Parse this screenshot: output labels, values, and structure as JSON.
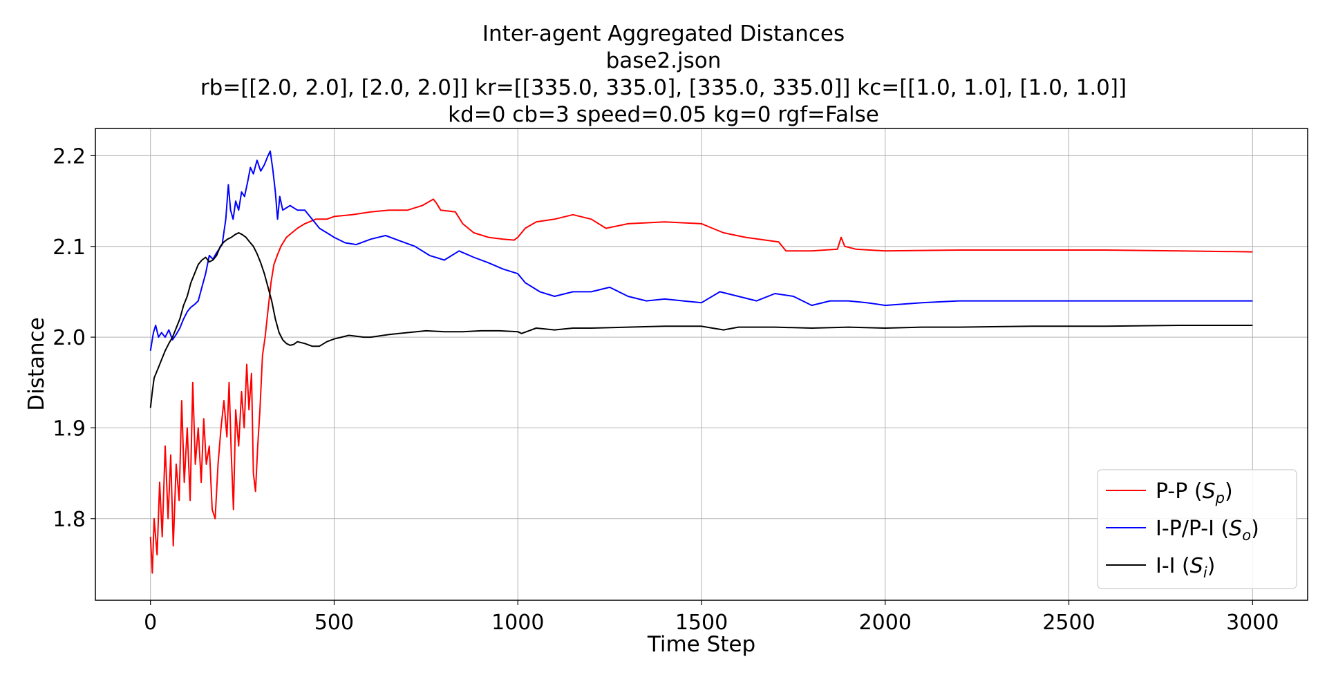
{
  "chart_data": {
    "type": "line",
    "title_lines": [
      "Inter-agent Aggregated Distances",
      "base2.json",
      "rb=[[2.0, 2.0], [2.0, 2.0]] kr=[[335.0, 335.0], [335.0, 335.0]] kc=[[1.0, 1.0], [1.0, 1.0]]",
      "kd=0 cb=3 speed=0.05 kg=0 rgf=False"
    ],
    "xlabel": "Time Step",
    "ylabel": "Distance",
    "xlim": [
      -150,
      3150
    ],
    "ylim": [
      1.71,
      2.23
    ],
    "xticks": [
      0,
      500,
      1000,
      1500,
      2000,
      2500,
      3000
    ],
    "yticks": [
      1.8,
      1.9,
      2.0,
      2.1,
      2.2
    ],
    "xtick_labels": [
      "0",
      "500",
      "1000",
      "1500",
      "2000",
      "2500",
      "3000"
    ],
    "ytick_labels": [
      "1.8",
      "1.9",
      "2.0",
      "2.1",
      "2.2"
    ],
    "grid": true,
    "legend_position": "lower-right",
    "series": [
      {
        "name": "P-P (S_p)",
        "label_main": "P-P (",
        "label_sym": "S",
        "label_sub": "p",
        "label_end": ")",
        "color": "#ff0000",
        "points": [
          [
            0,
            1.78
          ],
          [
            5,
            1.74
          ],
          [
            10,
            1.8
          ],
          [
            18,
            1.76
          ],
          [
            25,
            1.84
          ],
          [
            32,
            1.78
          ],
          [
            40,
            1.88
          ],
          [
            48,
            1.8
          ],
          [
            55,
            1.87
          ],
          [
            62,
            1.77
          ],
          [
            70,
            1.86
          ],
          [
            78,
            1.82
          ],
          [
            85,
            1.93
          ],
          [
            92,
            1.84
          ],
          [
            100,
            1.9
          ],
          [
            108,
            1.82
          ],
          [
            115,
            1.95
          ],
          [
            122,
            1.86
          ],
          [
            130,
            1.9
          ],
          [
            138,
            1.84
          ],
          [
            145,
            1.91
          ],
          [
            152,
            1.86
          ],
          [
            160,
            1.88
          ],
          [
            168,
            1.81
          ],
          [
            176,
            1.8
          ],
          [
            184,
            1.86
          ],
          [
            192,
            1.9
          ],
          [
            200,
            1.93
          ],
          [
            208,
            1.89
          ],
          [
            214,
            1.95
          ],
          [
            220,
            1.87
          ],
          [
            226,
            1.81
          ],
          [
            232,
            1.92
          ],
          [
            240,
            1.88
          ],
          [
            248,
            1.94
          ],
          [
            255,
            1.9
          ],
          [
            262,
            1.97
          ],
          [
            268,
            1.92
          ],
          [
            275,
            1.96
          ],
          [
            280,
            1.85
          ],
          [
            286,
            1.83
          ],
          [
            292,
            1.88
          ],
          [
            298,
            1.92
          ],
          [
            305,
            1.98
          ],
          [
            312,
            2.0
          ],
          [
            320,
            2.03
          ],
          [
            328,
            2.06
          ],
          [
            336,
            2.08
          ],
          [
            345,
            2.09
          ],
          [
            355,
            2.1
          ],
          [
            370,
            2.11
          ],
          [
            385,
            2.115
          ],
          [
            400,
            2.12
          ],
          [
            420,
            2.125
          ],
          [
            450,
            2.13
          ],
          [
            480,
            2.13
          ],
          [
            500,
            2.133
          ],
          [
            550,
            2.135
          ],
          [
            600,
            2.138
          ],
          [
            650,
            2.14
          ],
          [
            700,
            2.14
          ],
          [
            740,
            2.145
          ],
          [
            770,
            2.152
          ],
          [
            778,
            2.148
          ],
          [
            790,
            2.14
          ],
          [
            830,
            2.138
          ],
          [
            850,
            2.125
          ],
          [
            880,
            2.115
          ],
          [
            920,
            2.11
          ],
          [
            960,
            2.108
          ],
          [
            990,
            2.107
          ],
          [
            1000,
            2.11
          ],
          [
            1020,
            2.12
          ],
          [
            1050,
            2.127
          ],
          [
            1100,
            2.13
          ],
          [
            1150,
            2.135
          ],
          [
            1200,
            2.13
          ],
          [
            1240,
            2.12
          ],
          [
            1300,
            2.125
          ],
          [
            1400,
            2.127
          ],
          [
            1500,
            2.125
          ],
          [
            1530,
            2.12
          ],
          [
            1560,
            2.115
          ],
          [
            1620,
            2.11
          ],
          [
            1710,
            2.105
          ],
          [
            1730,
            2.095
          ],
          [
            1800,
            2.095
          ],
          [
            1870,
            2.097
          ],
          [
            1880,
            2.11
          ],
          [
            1890,
            2.1
          ],
          [
            1920,
            2.097
          ],
          [
            2000,
            2.095
          ],
          [
            2200,
            2.096
          ],
          [
            2400,
            2.096
          ],
          [
            2600,
            2.096
          ],
          [
            2800,
            2.095
          ],
          [
            3000,
            2.094
          ]
        ]
      },
      {
        "name": "I-P/P-I (S_o)",
        "label_main": "I-P/P-I (",
        "label_sym": "S",
        "label_sub": "o",
        "label_end": ")",
        "color": "#0000ff",
        "points": [
          [
            0,
            1.985
          ],
          [
            8,
            2.005
          ],
          [
            14,
            2.013
          ],
          [
            22,
            2.0
          ],
          [
            30,
            2.005
          ],
          [
            40,
            2.0
          ],
          [
            50,
            2.008
          ],
          [
            60,
            1.997
          ],
          [
            70,
            2.003
          ],
          [
            80,
            2.01
          ],
          [
            90,
            2.02
          ],
          [
            100,
            2.028
          ],
          [
            110,
            2.033
          ],
          [
            120,
            2.036
          ],
          [
            130,
            2.04
          ],
          [
            140,
            2.055
          ],
          [
            150,
            2.07
          ],
          [
            160,
            2.09
          ],
          [
            170,
            2.086
          ],
          [
            180,
            2.093
          ],
          [
            195,
            2.102
          ],
          [
            205,
            2.13
          ],
          [
            212,
            2.168
          ],
          [
            218,
            2.14
          ],
          [
            225,
            2.13
          ],
          [
            232,
            2.15
          ],
          [
            240,
            2.14
          ],
          [
            248,
            2.16
          ],
          [
            256,
            2.155
          ],
          [
            264,
            2.17
          ],
          [
            272,
            2.187
          ],
          [
            280,
            2.18
          ],
          [
            290,
            2.195
          ],
          [
            300,
            2.183
          ],
          [
            310,
            2.19
          ],
          [
            320,
            2.2
          ],
          [
            326,
            2.205
          ],
          [
            333,
            2.185
          ],
          [
            340,
            2.16
          ],
          [
            346,
            2.13
          ],
          [
            352,
            2.155
          ],
          [
            360,
            2.14
          ],
          [
            380,
            2.145
          ],
          [
            400,
            2.14
          ],
          [
            420,
            2.14
          ],
          [
            440,
            2.13
          ],
          [
            460,
            2.12
          ],
          [
            480,
            2.115
          ],
          [
            500,
            2.11
          ],
          [
            530,
            2.104
          ],
          [
            560,
            2.102
          ],
          [
            600,
            2.108
          ],
          [
            640,
            2.112
          ],
          [
            680,
            2.106
          ],
          [
            720,
            2.1
          ],
          [
            760,
            2.09
          ],
          [
            800,
            2.085
          ],
          [
            840,
            2.095
          ],
          [
            880,
            2.088
          ],
          [
            920,
            2.082
          ],
          [
            960,
            2.075
          ],
          [
            1000,
            2.07
          ],
          [
            1020,
            2.06
          ],
          [
            1060,
            2.05
          ],
          [
            1100,
            2.045
          ],
          [
            1150,
            2.05
          ],
          [
            1200,
            2.05
          ],
          [
            1250,
            2.055
          ],
          [
            1300,
            2.045
          ],
          [
            1350,
            2.04
          ],
          [
            1400,
            2.042
          ],
          [
            1450,
            2.04
          ],
          [
            1500,
            2.038
          ],
          [
            1550,
            2.05
          ],
          [
            1600,
            2.045
          ],
          [
            1650,
            2.04
          ],
          [
            1700,
            2.048
          ],
          [
            1750,
            2.045
          ],
          [
            1800,
            2.035
          ],
          [
            1850,
            2.04
          ],
          [
            1900,
            2.04
          ],
          [
            1950,
            2.038
          ],
          [
            2000,
            2.035
          ],
          [
            2100,
            2.038
          ],
          [
            2200,
            2.04
          ],
          [
            2400,
            2.04
          ],
          [
            2600,
            2.04
          ],
          [
            2800,
            2.04
          ],
          [
            3000,
            2.04
          ]
        ]
      },
      {
        "name": "I-I (S_i)",
        "label_main": "I-I (",
        "label_sym": "S",
        "label_sub": "i",
        "label_end": ")",
        "color": "#000000",
        "points": [
          [
            0,
            1.922
          ],
          [
            5,
            1.94
          ],
          [
            10,
            1.955
          ],
          [
            20,
            1.965
          ],
          [
            30,
            1.975
          ],
          [
            40,
            1.985
          ],
          [
            50,
            1.993
          ],
          [
            60,
            2.0
          ],
          [
            70,
            2.01
          ],
          [
            80,
            2.02
          ],
          [
            90,
            2.035
          ],
          [
            100,
            2.045
          ],
          [
            110,
            2.06
          ],
          [
            120,
            2.07
          ],
          [
            130,
            2.08
          ],
          [
            140,
            2.085
          ],
          [
            150,
            2.088
          ],
          [
            160,
            2.083
          ],
          [
            170,
            2.085
          ],
          [
            180,
            2.09
          ],
          [
            190,
            2.1
          ],
          [
            200,
            2.105
          ],
          [
            210,
            2.108
          ],
          [
            220,
            2.11
          ],
          [
            230,
            2.113
          ],
          [
            240,
            2.115
          ],
          [
            250,
            2.113
          ],
          [
            260,
            2.11
          ],
          [
            270,
            2.105
          ],
          [
            280,
            2.1
          ],
          [
            290,
            2.092
          ],
          [
            300,
            2.082
          ],
          [
            310,
            2.07
          ],
          [
            320,
            2.055
          ],
          [
            330,
            2.04
          ],
          [
            340,
            2.02
          ],
          [
            350,
            2.005
          ],
          [
            360,
            1.997
          ],
          [
            370,
            1.993
          ],
          [
            380,
            1.991
          ],
          [
            390,
            1.992
          ],
          [
            400,
            1.995
          ],
          [
            420,
            1.993
          ],
          [
            440,
            1.99
          ],
          [
            460,
            1.99
          ],
          [
            480,
            1.995
          ],
          [
            500,
            1.998
          ],
          [
            520,
            2.0
          ],
          [
            540,
            2.002
          ],
          [
            560,
            2.001
          ],
          [
            580,
            2.0
          ],
          [
            600,
            2.0
          ],
          [
            650,
            2.003
          ],
          [
            700,
            2.005
          ],
          [
            750,
            2.007
          ],
          [
            800,
            2.006
          ],
          [
            850,
            2.006
          ],
          [
            900,
            2.007
          ],
          [
            950,
            2.007
          ],
          [
            1000,
            2.006
          ],
          [
            1010,
            2.004
          ],
          [
            1030,
            2.007
          ],
          [
            1050,
            2.01
          ],
          [
            1100,
            2.008
          ],
          [
            1150,
            2.01
          ],
          [
            1200,
            2.01
          ],
          [
            1300,
            2.011
          ],
          [
            1400,
            2.012
          ],
          [
            1500,
            2.012
          ],
          [
            1530,
            2.01
          ],
          [
            1560,
            2.008
          ],
          [
            1600,
            2.011
          ],
          [
            1700,
            2.011
          ],
          [
            1800,
            2.01
          ],
          [
            1900,
            2.011
          ],
          [
            2000,
            2.01
          ],
          [
            2100,
            2.011
          ],
          [
            2200,
            2.011
          ],
          [
            2400,
            2.012
          ],
          [
            2600,
            2.012
          ],
          [
            2800,
            2.013
          ],
          [
            3000,
            2.013
          ]
        ]
      }
    ]
  }
}
